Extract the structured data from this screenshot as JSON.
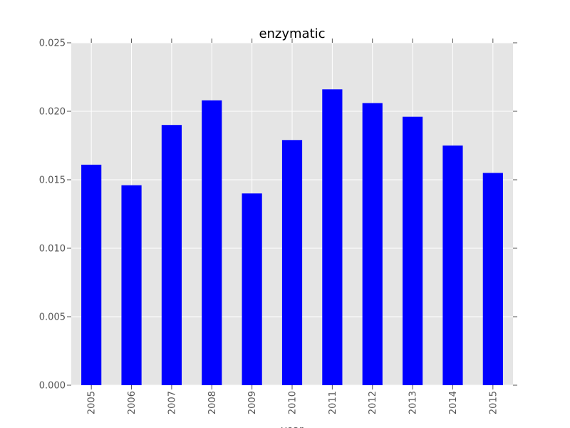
{
  "chart_data": {
    "type": "bar",
    "title": "enzymatic",
    "xlabel": "year",
    "ylabel": "",
    "categories": [
      "2005",
      "2006",
      "2007",
      "2008",
      "2009",
      "2010",
      "2011",
      "2012",
      "2013",
      "2014",
      "2015"
    ],
    "values": [
      0.0161,
      0.0146,
      0.019,
      0.0208,
      0.014,
      0.0179,
      0.0216,
      0.0206,
      0.0196,
      0.0175,
      0.0155
    ],
    "ylim": [
      0,
      0.025
    ],
    "yticks": [
      "0.000",
      "0.005",
      "0.010",
      "0.015",
      "0.020",
      "0.025"
    ],
    "grid": true,
    "legend": "none"
  },
  "colors": {
    "bar": "#0000ff",
    "plot_background": "#e5e5e5",
    "grid": "#ffffff"
  }
}
